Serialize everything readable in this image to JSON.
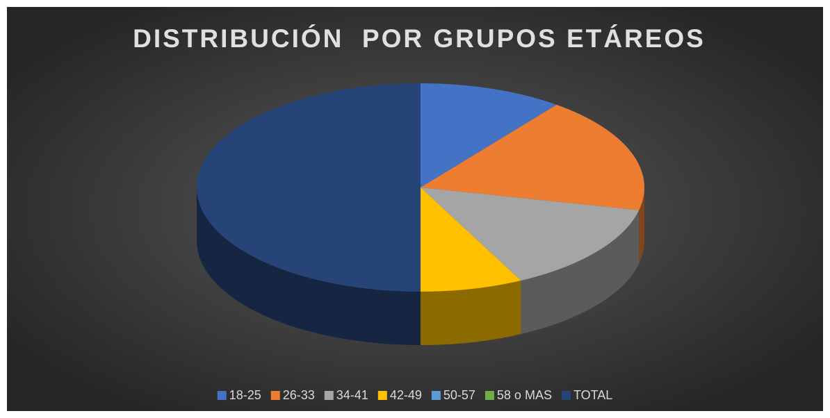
{
  "chart_data": {
    "type": "pie3d",
    "title": "DISTRIBUCIÓN  POR GRUPOS ETÁREOS",
    "categories": [
      "18-25",
      "26-33",
      "34-41",
      "42-49",
      "50-57",
      "58 o MAS",
      "TOTAL"
    ],
    "values": [
      10.4,
      18.1,
      14.1,
      7.4,
      0,
      0,
      50
    ],
    "colors": [
      "#4472c4",
      "#ed7d31",
      "#a5a5a5",
      "#ffc000",
      "#5b9bd5",
      "#70ad47",
      "#264478"
    ],
    "legend": "bottom"
  }
}
